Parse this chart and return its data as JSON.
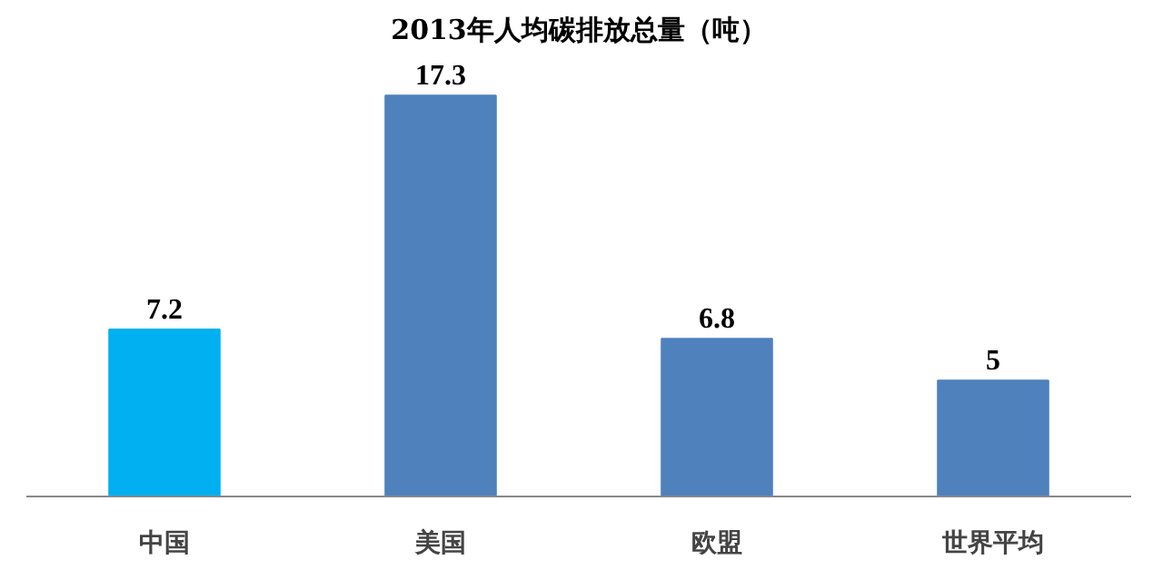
{
  "chart_data": {
    "type": "bar",
    "title": "2013年人均碳排放总量（吨）",
    "categories": [
      "中国",
      "美国",
      "欧盟",
      "世界平均"
    ],
    "values": [
      7.2,
      17.3,
      6.8,
      5
    ],
    "colors": [
      "#00b0f0",
      "#4f81bd",
      "#4f81bd",
      "#4f81bd"
    ],
    "value_labels": [
      "7.2",
      "17.3",
      "6.8",
      "5"
    ],
    "grid": false
  }
}
